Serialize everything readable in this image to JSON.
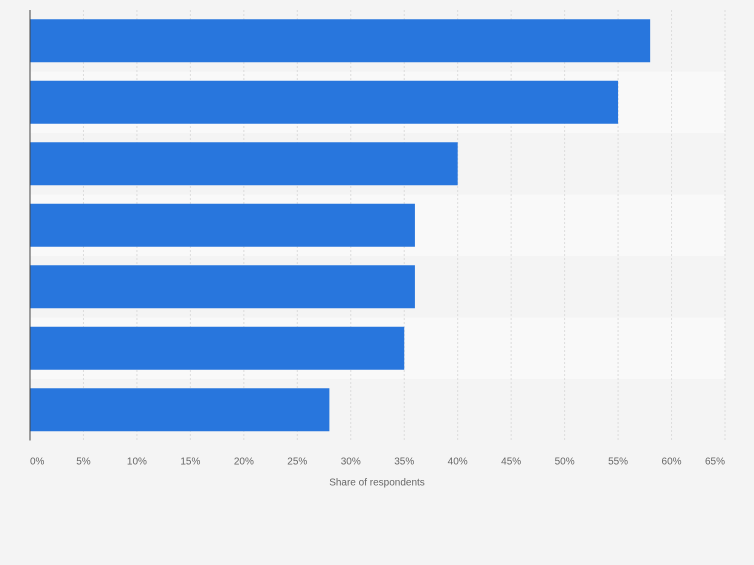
{
  "chart_data": {
    "type": "bar",
    "orientation": "horizontal",
    "title": "",
    "xlabel": "Share of respondents",
    "ylabel": "",
    "categories": [
      "",
      "",
      "",
      "",
      "",
      "",
      ""
    ],
    "values": [
      58,
      55,
      40,
      36,
      36,
      35,
      28
    ],
    "xlim": [
      0,
      65
    ],
    "x_ticks": [
      "0%",
      "5%",
      "10%",
      "15%",
      "20%",
      "25%",
      "30%",
      "35%",
      "40%",
      "45%",
      "50%",
      "55%",
      "60%",
      "65%"
    ],
    "grid": true,
    "legend": "none",
    "colors": {
      "bar": "#2876dd",
      "background": "#f4f4f4",
      "band_light": "#f9f9f9",
      "band_dark": "#f4f4f4",
      "grid": "#dcdcdc",
      "axis": "#444444",
      "tick_text": "#666666"
    }
  }
}
